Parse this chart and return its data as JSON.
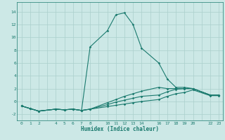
{
  "xlabel": "Humidex (Indice chaleur)",
  "bg_color": "#cce8e6",
  "grid_color": "#aacfcc",
  "line_color": "#1a7a6e",
  "xlim": [
    -0.5,
    23.5
  ],
  "ylim": [
    -3.0,
    15.5
  ],
  "yticks": [
    -2,
    0,
    2,
    4,
    6,
    8,
    10,
    12,
    14
  ],
  "xtick_labels": [
    "0",
    "1",
    "2",
    "",
    "4",
    "5",
    "6",
    "7",
    "8",
    "",
    "10",
    "11",
    "12",
    "13",
    "14",
    "",
    "16",
    "17",
    "18",
    "19",
    "20",
    "",
    "22",
    "23"
  ],
  "line1_x": [
    0,
    1,
    2,
    4,
    5,
    6,
    7,
    8,
    10,
    11,
    12,
    13,
    14,
    16,
    17,
    18,
    19,
    20,
    22,
    23
  ],
  "line1_y": [
    -0.7,
    -1.1,
    -1.5,
    -1.2,
    -1.3,
    -1.2,
    -1.4,
    -1.2,
    -0.8,
    -0.6,
    -0.4,
    -0.2,
    0.0,
    0.3,
    0.8,
    1.2,
    1.4,
    1.8,
    0.9,
    0.9
  ],
  "line2_x": [
    0,
    1,
    2,
    4,
    5,
    6,
    7,
    8,
    10,
    11,
    12,
    13,
    14,
    16,
    17,
    18,
    19,
    20,
    22,
    23
  ],
  "line2_y": [
    -0.7,
    -1.1,
    -1.5,
    -1.2,
    -1.3,
    -1.2,
    -1.4,
    -1.2,
    -0.5,
    -0.1,
    0.2,
    0.5,
    0.8,
    1.0,
    1.5,
    1.9,
    2.0,
    2.0,
    1.0,
    1.0
  ],
  "line3_x": [
    0,
    1,
    2,
    4,
    5,
    6,
    7,
    8,
    10,
    11,
    12,
    13,
    14,
    16,
    17,
    18,
    19,
    20,
    22,
    23
  ],
  "line3_y": [
    -0.7,
    -1.1,
    -1.5,
    -1.2,
    -1.3,
    -1.2,
    -1.4,
    8.5,
    11.0,
    13.5,
    13.8,
    12.0,
    8.3,
    6.0,
    3.5,
    2.2,
    2.2,
    2.0,
    1.0,
    1.0
  ],
  "line4_x": [
    0,
    1,
    2,
    4,
    5,
    6,
    7,
    8,
    10,
    11,
    12,
    13,
    14,
    16,
    17,
    18,
    19,
    20,
    22,
    23
  ],
  "line4_y": [
    -0.7,
    -1.1,
    -1.5,
    -1.2,
    -1.3,
    -1.2,
    -1.4,
    -1.2,
    -0.2,
    0.3,
    0.8,
    1.2,
    1.6,
    2.2,
    2.0,
    2.0,
    2.0,
    2.0,
    1.0,
    1.0
  ]
}
